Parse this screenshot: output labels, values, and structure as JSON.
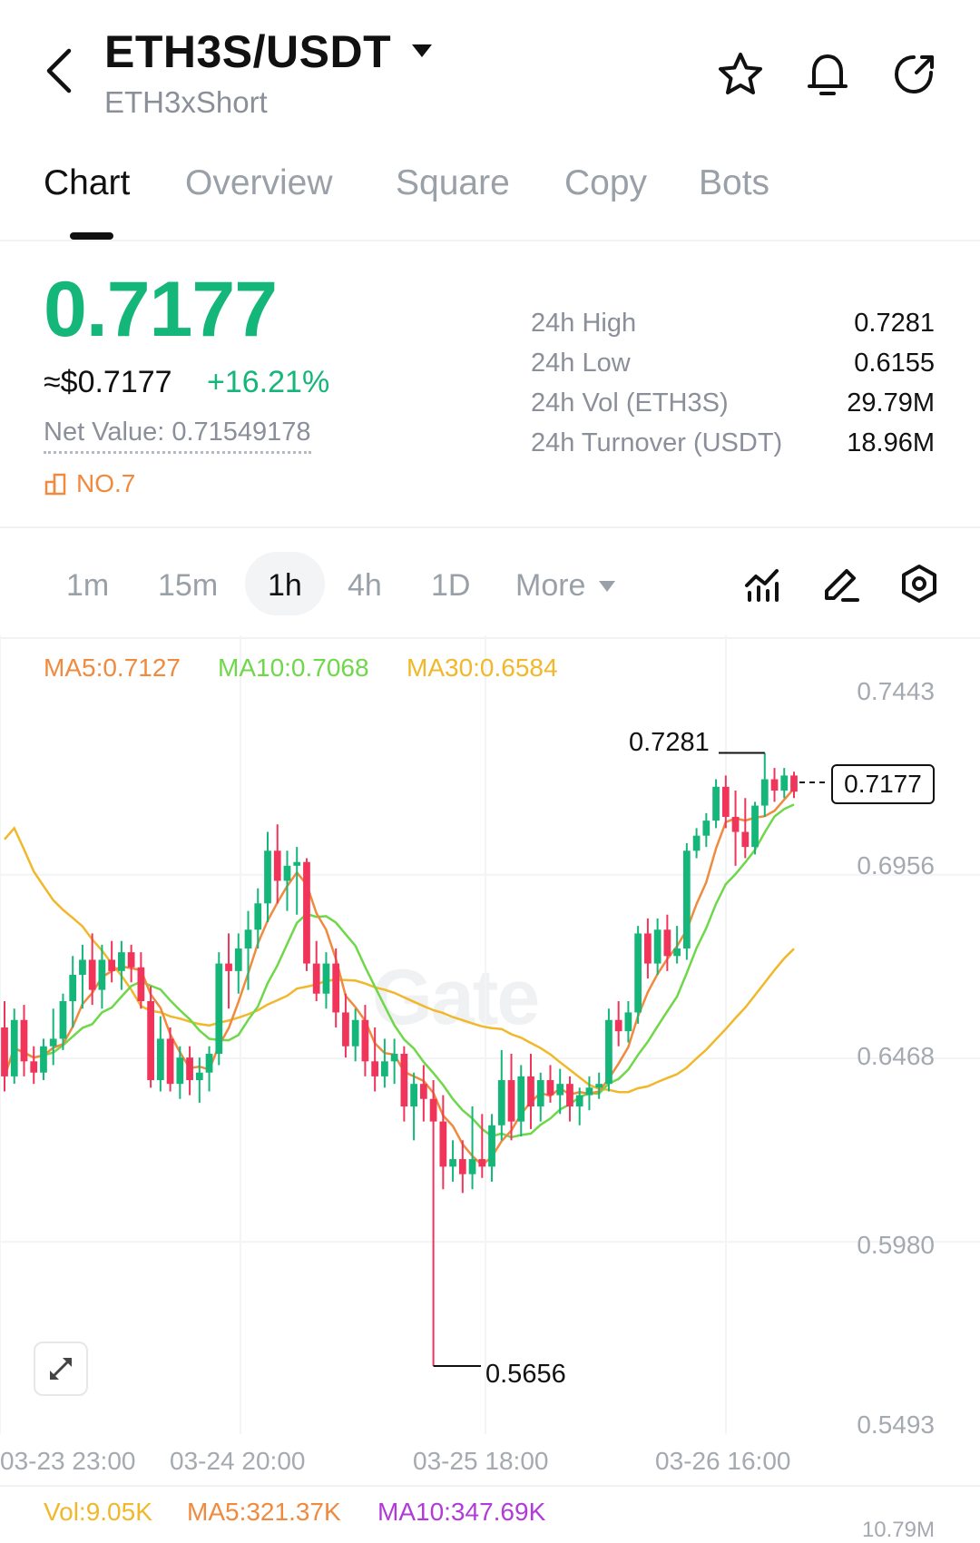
{
  "header": {
    "title": "ETH3S/USDT",
    "subtitle": "ETH3xShort",
    "icons": [
      "back-arrow-icon",
      "dropdown-caret-icon",
      "star-icon",
      "bell-icon",
      "share-icon"
    ]
  },
  "tabs": [
    {
      "label": "Chart",
      "active": true
    },
    {
      "label": "Overview"
    },
    {
      "label": "Square"
    },
    {
      "label": "Copy"
    },
    {
      "label": "Bots"
    }
  ],
  "ticker": {
    "price": "0.7177",
    "approx": "≈$0.7177",
    "change": "+16.21%",
    "net_value": "Net Value: 0.71549178",
    "rank": "NO.7"
  },
  "stats": [
    {
      "label": "24h  High",
      "value": "0.7281"
    },
    {
      "label": "24h  Low",
      "value": "0.6155"
    },
    {
      "label": "24h  Vol (ETH3S)",
      "value": "29.79M"
    },
    {
      "label": "24h  Turnover (USDT)",
      "value": "18.96M"
    }
  ],
  "intervals": [
    {
      "label": "1m"
    },
    {
      "label": "15m"
    },
    {
      "label": "1h",
      "active": true
    },
    {
      "label": "4h"
    },
    {
      "label": "1D"
    },
    {
      "label": "More"
    }
  ],
  "chart_tools": [
    "indicator-icon",
    "draw-pencil-icon",
    "settings-icon"
  ],
  "colors": {
    "up": "#15b67a",
    "down": "#f0345a",
    "ma5": "#f08a3e",
    "ma10": "#6fd84a",
    "ma30": "#f0b82a"
  },
  "chart_data": {
    "type": "candlestick",
    "interval": "1h",
    "ma_legend": [
      {
        "label": "MA5:0.7127",
        "color": "#f08a3e"
      },
      {
        "label": "MA10:0.7068",
        "color": "#6fd84a"
      },
      {
        "label": "MA30:0.6584",
        "color": "#f0b82a"
      }
    ],
    "y_ticks": [
      "0.7443",
      "0.6956",
      "0.6468",
      "0.5980",
      "0.5493"
    ],
    "ylim": [
      0.5493,
      0.7443
    ],
    "x_ticks": [
      "03-23 23:00",
      "03-24 20:00",
      "03-25 18:00",
      "03-26 16:00"
    ],
    "high_label": "0.7281",
    "low_label": "0.5656",
    "last_price": "0.7177",
    "watermark": "Gate",
    "candles": [
      [
        0.655,
        0.662,
        0.638,
        0.642
      ],
      [
        0.642,
        0.66,
        0.64,
        0.657
      ],
      [
        0.657,
        0.661,
        0.642,
        0.646
      ],
      [
        0.646,
        0.65,
        0.64,
        0.643
      ],
      [
        0.643,
        0.652,
        0.641,
        0.65
      ],
      [
        0.65,
        0.66,
        0.645,
        0.652
      ],
      [
        0.652,
        0.664,
        0.649,
        0.662
      ],
      [
        0.662,
        0.674,
        0.655,
        0.669
      ],
      [
        0.669,
        0.677,
        0.66,
        0.673
      ],
      [
        0.673,
        0.68,
        0.661,
        0.665
      ],
      [
        0.665,
        0.677,
        0.66,
        0.673
      ],
      [
        0.673,
        0.678,
        0.667,
        0.67
      ],
      [
        0.67,
        0.678,
        0.665,
        0.675
      ],
      [
        0.675,
        0.677,
        0.667,
        0.671
      ],
      [
        0.671,
        0.675,
        0.66,
        0.662
      ],
      [
        0.662,
        0.666,
        0.639,
        0.641
      ],
      [
        0.641,
        0.658,
        0.638,
        0.652
      ],
      [
        0.652,
        0.655,
        0.638,
        0.64
      ],
      [
        0.64,
        0.65,
        0.636,
        0.647
      ],
      [
        0.647,
        0.65,
        0.637,
        0.641
      ],
      [
        0.641,
        0.647,
        0.635,
        0.643
      ],
      [
        0.643,
        0.65,
        0.638,
        0.648
      ],
      [
        0.648,
        0.675,
        0.645,
        0.672
      ],
      [
        0.672,
        0.68,
        0.66,
        0.67
      ],
      [
        0.67,
        0.68,
        0.664,
        0.676
      ],
      [
        0.676,
        0.686,
        0.665,
        0.681
      ],
      [
        0.681,
        0.692,
        0.676,
        0.688
      ],
      [
        0.688,
        0.707,
        0.683,
        0.702
      ],
      [
        0.702,
        0.709,
        0.688,
        0.694
      ],
      [
        0.694,
        0.702,
        0.686,
        0.698
      ],
      [
        0.698,
        0.703,
        0.685,
        0.699
      ],
      [
        0.699,
        0.7,
        0.67,
        0.672
      ],
      [
        0.672,
        0.678,
        0.662,
        0.664
      ],
      [
        0.664,
        0.675,
        0.66,
        0.672
      ],
      [
        0.672,
        0.676,
        0.655,
        0.659
      ],
      [
        0.659,
        0.664,
        0.647,
        0.65
      ],
      [
        0.65,
        0.66,
        0.646,
        0.657
      ],
      [
        0.657,
        0.661,
        0.642,
        0.646
      ],
      [
        0.646,
        0.655,
        0.638,
        0.642
      ],
      [
        0.642,
        0.652,
        0.639,
        0.646
      ],
      [
        0.646,
        0.652,
        0.64,
        0.648
      ],
      [
        0.648,
        0.65,
        0.63,
        0.634
      ],
      [
        0.634,
        0.643,
        0.625,
        0.64
      ],
      [
        0.64,
        0.645,
        0.63,
        0.636
      ],
      [
        0.636,
        0.641,
        0.565,
        0.63
      ],
      [
        0.63,
        0.637,
        0.612,
        0.618
      ],
      [
        0.618,
        0.625,
        0.614,
        0.62
      ],
      [
        0.62,
        0.625,
        0.611,
        0.616
      ],
      [
        0.616,
        0.634,
        0.612,
        0.62
      ],
      [
        0.62,
        0.632,
        0.615,
        0.618
      ],
      [
        0.618,
        0.632,
        0.614,
        0.629
      ],
      [
        0.629,
        0.649,
        0.625,
        0.641
      ],
      [
        0.641,
        0.648,
        0.625,
        0.63
      ],
      [
        0.63,
        0.645,
        0.626,
        0.642
      ],
      [
        0.642,
        0.648,
        0.628,
        0.634
      ],
      [
        0.634,
        0.643,
        0.63,
        0.641
      ],
      [
        0.641,
        0.645,
        0.635,
        0.637
      ],
      [
        0.637,
        0.644,
        0.632,
        0.64
      ],
      [
        0.64,
        0.642,
        0.63,
        0.634
      ],
      [
        0.634,
        0.639,
        0.629,
        0.637
      ],
      [
        0.637,
        0.642,
        0.633,
        0.639
      ],
      [
        0.639,
        0.643,
        0.636,
        0.64
      ],
      [
        0.64,
        0.66,
        0.638,
        0.657
      ],
      [
        0.657,
        0.662,
        0.65,
        0.654
      ],
      [
        0.654,
        0.662,
        0.651,
        0.659
      ],
      [
        0.659,
        0.682,
        0.656,
        0.68
      ],
      [
        0.68,
        0.684,
        0.668,
        0.672
      ],
      [
        0.672,
        0.684,
        0.669,
        0.681
      ],
      [
        0.681,
        0.685,
        0.67,
        0.674
      ],
      [
        0.674,
        0.682,
        0.672,
        0.676
      ],
      [
        0.676,
        0.704,
        0.673,
        0.702
      ],
      [
        0.702,
        0.708,
        0.7,
        0.706
      ],
      [
        0.706,
        0.712,
        0.703,
        0.71
      ],
      [
        0.71,
        0.721,
        0.708,
        0.719
      ],
      [
        0.719,
        0.722,
        0.708,
        0.711
      ],
      [
        0.711,
        0.718,
        0.698,
        0.707
      ],
      [
        0.707,
        0.716,
        0.7,
        0.703
      ],
      [
        0.703,
        0.715,
        0.701,
        0.714
      ],
      [
        0.714,
        0.728,
        0.711,
        0.721
      ],
      [
        0.721,
        0.724,
        0.715,
        0.718
      ],
      [
        0.718,
        0.724,
        0.716,
        0.722
      ],
      [
        0.722,
        0.723,
        0.716,
        0.7177
      ]
    ]
  },
  "volume": {
    "legend": [
      {
        "label": "Vol:9.05K",
        "color": "#f0b82a"
      },
      {
        "label": "MA5:321.37K",
        "color": "#f08a3e"
      },
      {
        "label": "MA10:347.69K",
        "color": "#b23ad8"
      }
    ],
    "axis_label": "10.79M"
  }
}
